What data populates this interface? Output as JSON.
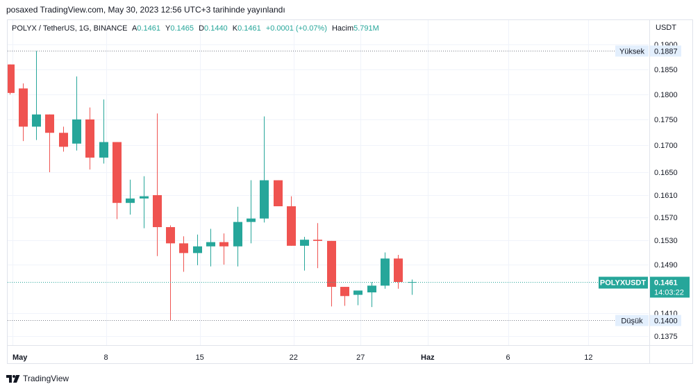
{
  "header": {
    "published": "posaxed TradingView.com, May 30, 2023 12:56 UTC+3 tarihinde yayınlandı"
  },
  "legend": {
    "symbol": "POLYX / TetherUS, 1G, BINANCE",
    "open_label": "A",
    "open": "0.1461",
    "high_label": "Y",
    "high": "0.1465",
    "low_label": "D",
    "low": "0.1440",
    "close_label": "K",
    "close": "0.1461",
    "change": "+0.0001 (+0.07%)",
    "volume_label": "Hacim",
    "volume": "5.791M"
  },
  "price_axis": {
    "currency": "USDT"
  },
  "footer": {
    "brand": "TradingView"
  },
  "colors": {
    "up": "#26a69a",
    "down": "#ef5350",
    "grid": "#f0f3fa",
    "text": "#131722"
  },
  "chart_data": {
    "type": "candlestick",
    "ticker": "POLYXUSDT",
    "y_ticks": [
      "0.1900",
      "0.1850",
      "0.1800",
      "0.1750",
      "0.1700",
      "0.1650",
      "0.1610",
      "0.1570",
      "0.1530",
      "0.1490",
      "0.1410",
      "0.1375"
    ],
    "x_ticks": [
      "May",
      "8",
      "15",
      "22",
      "27",
      "Haz",
      "6",
      "12"
    ],
    "high_marker": {
      "label": "Yüksek",
      "value": "0.1887"
    },
    "low_marker": {
      "label": "Düşük",
      "value": "0.1400"
    },
    "last_price": {
      "label": "POLYXUSDT",
      "value": "0.1461",
      "countdown": "14:03:22"
    },
    "candles": [
      {
        "o": 0.186,
        "h": 0.186,
        "l": 0.18,
        "c": 0.1803
      },
      {
        "o": 0.1812,
        "h": 0.1822,
        "l": 0.1708,
        "c": 0.1736
      },
      {
        "o": 0.1736,
        "h": 0.1887,
        "l": 0.171,
        "c": 0.176
      },
      {
        "o": 0.176,
        "h": 0.176,
        "l": 0.165,
        "c": 0.1724
      },
      {
        "o": 0.1724,
        "h": 0.1736,
        "l": 0.1688,
        "c": 0.1697
      },
      {
        "o": 0.1703,
        "h": 0.1836,
        "l": 0.169,
        "c": 0.175
      },
      {
        "o": 0.175,
        "h": 0.1774,
        "l": 0.1655,
        "c": 0.1677
      },
      {
        "o": 0.1677,
        "h": 0.179,
        "l": 0.1666,
        "c": 0.1706
      },
      {
        "o": 0.1706,
        "h": 0.1706,
        "l": 0.1567,
        "c": 0.1596
      },
      {
        "o": 0.1596,
        "h": 0.1637,
        "l": 0.1575,
        "c": 0.1604
      },
      {
        "o": 0.1604,
        "h": 0.1643,
        "l": 0.1551,
        "c": 0.1608
      },
      {
        "o": 0.161,
        "h": 0.1762,
        "l": 0.1504,
        "c": 0.1553
      },
      {
        "o": 0.1553,
        "h": 0.1556,
        "l": 0.14,
        "c": 0.1525
      },
      {
        "o": 0.1525,
        "h": 0.1537,
        "l": 0.1478,
        "c": 0.1509
      },
      {
        "o": 0.1509,
        "h": 0.154,
        "l": 0.1489,
        "c": 0.152
      },
      {
        "o": 0.152,
        "h": 0.155,
        "l": 0.1487,
        "c": 0.1527
      },
      {
        "o": 0.1527,
        "h": 0.1542,
        "l": 0.149,
        "c": 0.152
      },
      {
        "o": 0.152,
        "h": 0.1589,
        "l": 0.1487,
        "c": 0.1562
      },
      {
        "o": 0.1562,
        "h": 0.1636,
        "l": 0.1525,
        "c": 0.1568
      },
      {
        "o": 0.1568,
        "h": 0.1756,
        "l": 0.1561,
        "c": 0.1636
      },
      {
        "o": 0.1636,
        "h": 0.1636,
        "l": 0.159,
        "c": 0.159
      },
      {
        "o": 0.159,
        "h": 0.1608,
        "l": 0.1521,
        "c": 0.1521
      },
      {
        "o": 0.1521,
        "h": 0.1536,
        "l": 0.148,
        "c": 0.1531
      },
      {
        "o": 0.1531,
        "h": 0.156,
        "l": 0.1484,
        "c": 0.1529
      },
      {
        "o": 0.1529,
        "h": 0.1529,
        "l": 0.1421,
        "c": 0.1453
      },
      {
        "o": 0.1453,
        "h": 0.1453,
        "l": 0.1422,
        "c": 0.1438
      },
      {
        "o": 0.144,
        "h": 0.1446,
        "l": 0.1423,
        "c": 0.1447
      },
      {
        "o": 0.1444,
        "h": 0.1461,
        "l": 0.142,
        "c": 0.1455
      },
      {
        "o": 0.1455,
        "h": 0.151,
        "l": 0.145,
        "c": 0.15
      },
      {
        "o": 0.15,
        "h": 0.1506,
        "l": 0.145,
        "c": 0.1461
      },
      {
        "o": 0.1461,
        "h": 0.1465,
        "l": 0.144,
        "c": 0.1461
      }
    ]
  }
}
